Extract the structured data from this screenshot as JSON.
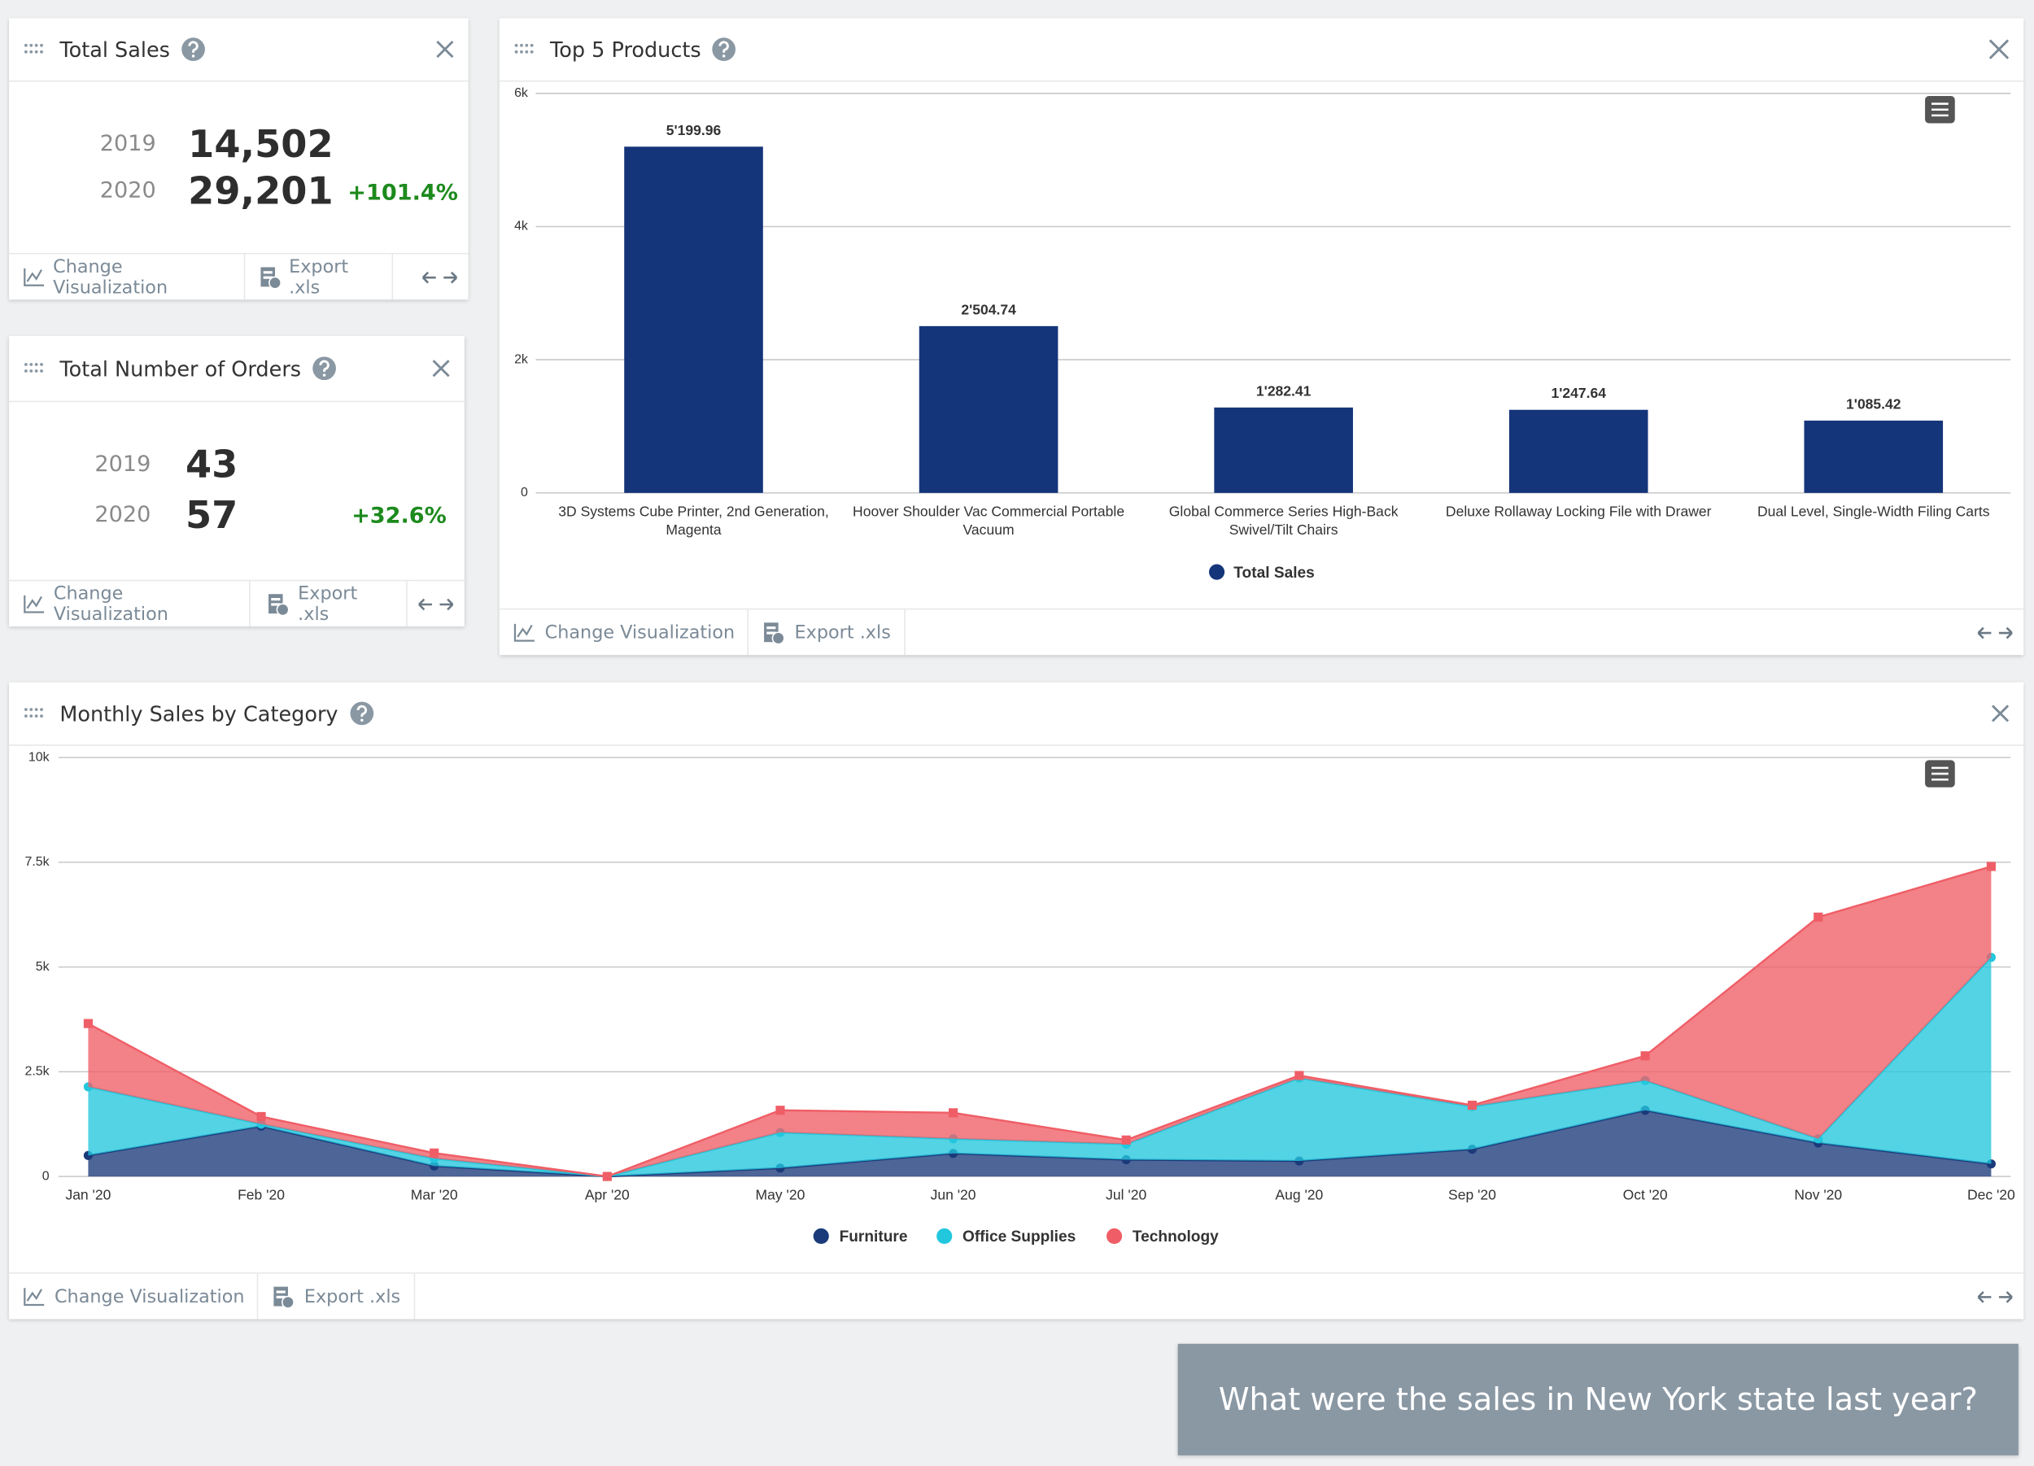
{
  "cards": {
    "total_sales": {
      "title": "Total Sales",
      "rows": [
        {
          "year": "2019",
          "value": "14,502"
        },
        {
          "year": "2020",
          "value": "29,201",
          "change": "+101.4%"
        }
      ]
    },
    "orders": {
      "title": "Total Number of Orders",
      "rows": [
        {
          "year": "2019",
          "value": "43"
        },
        {
          "year": "2020",
          "value": "57",
          "change": "+32.6%"
        }
      ]
    }
  },
  "footer": {
    "change_visualization": "Change Visualization",
    "export": "Export .xls"
  },
  "chart_data": [
    {
      "type": "bar",
      "title": "Top 5 Products",
      "categories": [
        "3D Systems Cube Printer, 2nd Generation, Magenta",
        "Hoover Shoulder Vac Commercial Portable Vacuum",
        "Global Commerce Series High-Back Swivel/Tilt Chairs",
        "Deluxe Rollaway Locking File with Drawer",
        "Dual Level, Single-Width Filing Carts"
      ],
      "series": [
        {
          "name": "Total Sales",
          "color": "#15357a",
          "values": [
            5199.96,
            2504.74,
            1282.41,
            1247.64,
            1085.42
          ],
          "value_labels": [
            "5'199.96",
            "2'504.74",
            "1'282.41",
            "1'247.64",
            "1'085.42"
          ]
        }
      ],
      "ylim": [
        0,
        6000
      ],
      "yticks": [
        0,
        {
          "value": 2000,
          "label": "2k"
        },
        {
          "value": 4000,
          "label": "4k"
        },
        {
          "value": 6000,
          "label": "6k"
        }
      ],
      "grid": true,
      "legend": "bottom"
    },
    {
      "type": "stacked-area",
      "title": "Monthly Sales by Category",
      "categories": [
        "Jan '20",
        "Feb '20",
        "Mar '20",
        "Apr '20",
        "May '20",
        "Jun '20",
        "Jul '20",
        "Aug '20",
        "Sep '20",
        "Oct '20",
        "Nov '20",
        "Dec '20"
      ],
      "series": [
        {
          "name": "Furniture",
          "color": "#1b3a7a",
          "values": [
            500,
            1200,
            250,
            0,
            200,
            550,
            400,
            370,
            650,
            1580,
            800,
            300
          ]
        },
        {
          "name": "Office Supplies",
          "color": "#22c7dd",
          "values": [
            1640,
            50,
            180,
            0,
            850,
            350,
            370,
            1980,
            1020,
            710,
            100,
            4930
          ]
        },
        {
          "name": "Technology",
          "color": "#ef5e66",
          "values": [
            1510,
            180,
            130,
            0,
            530,
            620,
            100,
            60,
            30,
            590,
            5290,
            2170
          ]
        }
      ],
      "ylim": [
        0,
        10000
      ],
      "yticks": [
        0,
        {
          "value": 2500,
          "label": "2.5k"
        },
        {
          "value": 5000,
          "label": "5k"
        },
        {
          "value": 7500,
          "label": "7.5k"
        },
        {
          "value": 10000,
          "label": "10k"
        }
      ],
      "grid": true,
      "legend": "bottom"
    }
  ],
  "chat": {
    "message": "What were the sales in New York state last year?"
  }
}
